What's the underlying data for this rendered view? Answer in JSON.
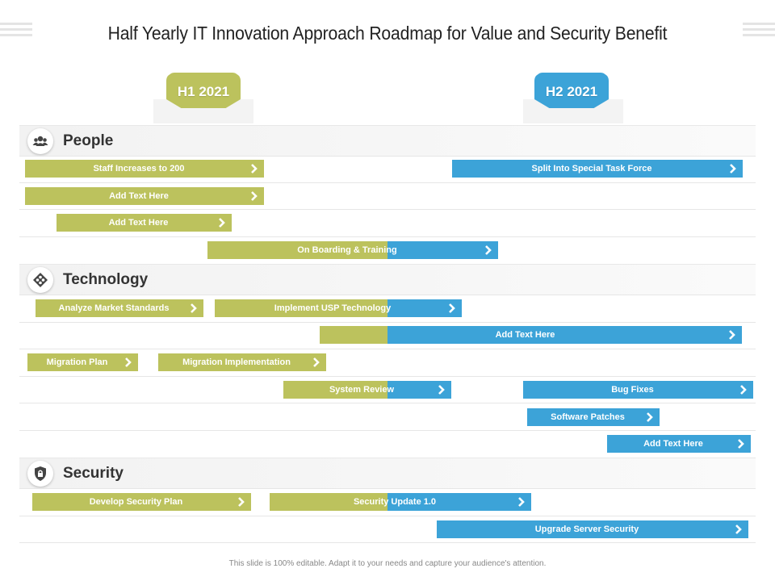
{
  "title": "Half Yearly IT Innovation Approach Roadmap for Value and Security Benefit",
  "periods": [
    {
      "label": "H1 2021",
      "color": "#bcc25d"
    },
    {
      "label": "H2 2021",
      "color": "#3ca3d8"
    }
  ],
  "sections": [
    {
      "name": "People",
      "icon": "people-icon"
    },
    {
      "name": "Technology",
      "icon": "technology-icon"
    },
    {
      "name": "Security",
      "icon": "lock-icon"
    }
  ],
  "bars": [
    {
      "label": "Staff Increases  to 200",
      "period": "H1"
    },
    {
      "label": "Split Into Special Task Force",
      "period": "H2"
    },
    {
      "label": "Add Text Here",
      "period": "H1"
    },
    {
      "label": "Add Text Here",
      "period": "H1"
    },
    {
      "label": "On Boarding & Training",
      "period": "H1-H2"
    },
    {
      "label": "Analyze Market Standards",
      "period": "H1"
    },
    {
      "label": "Implement USP Technology",
      "period": "H1-H2"
    },
    {
      "label": "Add Text Here",
      "period": "H1-H2"
    },
    {
      "label": "Migration Plan",
      "period": "H1"
    },
    {
      "label": "Migration Implementation",
      "period": "H1"
    },
    {
      "label": "System Review",
      "period": "H1-H2"
    },
    {
      "label": "Bug Fixes",
      "period": "H2"
    },
    {
      "label": "Software Patches",
      "period": "H2"
    },
    {
      "label": "Add Text Here",
      "period": "H2"
    },
    {
      "label": "Develop Security Plan",
      "period": "H1"
    },
    {
      "label": "Security Update  1.0",
      "period": "H1-H2"
    },
    {
      "label": "Upgrade Server Security",
      "period": "H2"
    }
  ],
  "footer": "This slide is 100% editable. Adapt it to your needs and capture your audience's attention."
}
